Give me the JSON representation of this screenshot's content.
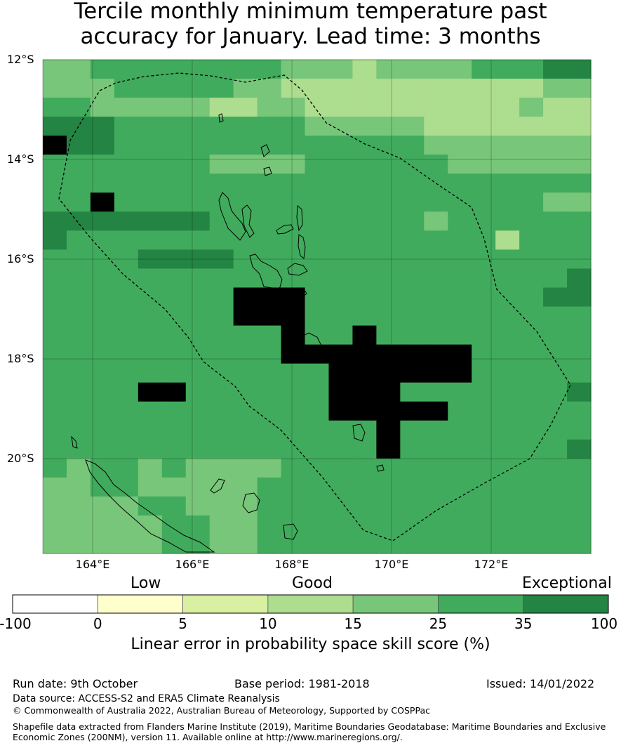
{
  "title_line1": "Tercile monthly minimum temperature past",
  "title_line2": "accuracy for January. Lead time: 3 months",
  "lat_labels": [
    "12°S",
    "14°S",
    "16°S",
    "18°S",
    "20°S"
  ],
  "lon_labels": [
    "164°E",
    "166°E",
    "168°E",
    "170°E",
    "172°E"
  ],
  "categories": [
    "Low",
    "Good",
    "Exceptional"
  ],
  "colorbar": {
    "ticks": [
      "-100",
      "0",
      "5",
      "10",
      "15",
      "25",
      "35",
      "100"
    ],
    "colors": [
      "#ffffff",
      "#ffffcc",
      "#d9f0a3",
      "#addd8e",
      "#78c679",
      "#41ab5d",
      "#238443"
    ],
    "label": "Linear error in probability space skill score (%)"
  },
  "map_data": {
    "lon_range": [
      163.0,
      174.0
    ],
    "lat_range": [
      -21.9,
      -12.0
    ],
    "grid_lons": [
      164,
      166,
      168,
      170,
      172
    ],
    "grid_lats": [
      -12,
      -14,
      -16,
      -18,
      -20
    ],
    "grid_rows": [
      "44555555554443444455566",
      "44455555443333333333344",
      "55444443344333333333433",
      "66655555555444443333333",
      "76655555555555554444444",
      "55555554444555555444444",
      "55555555555555555555555",
      "55755555555555555555544",
      "66666665555555554555555",
      "65555555555555555553555",
      "55556666555555555555555",
      "55555555555555555555556",
      "55555555777555555555566",
      "55555555777555555555555",
      "55555555557557555555555",
      "55555555557777777755555",
      "55555555555577777755555",
      "55557755555577755555556",
      "55555555555577777555555",
      "55555555555555755555555",
      "55555555555555755555556",
      "54554544445555555555555",
      "44554444455555555555555",
      "44445544455555555555555",
      "44444554455555555555555",
      "44444554455555555555555"
    ]
  },
  "footer": {
    "run_date": "Run date: 9th October",
    "base_period": "Base period: 1981-2018",
    "issued": "Issued: 14/01/2022",
    "data_source": "Data source: ACCESS-S2 and ERA5 Climate Reanalysis",
    "copyright": "© Commonwealth of Australia 2022, Australian Bureau of Meteorology, Supported by COSPPac",
    "shapefile_line1": "Shapefile data extracted from Flanders Marine Institute (2019), Maritime Boundaries Geodatabase: Maritime Boundaries and Exclusive",
    "shapefile_line2": "Economic Zones (200NM), version 11. Available online at http://www.marineregions.org/."
  }
}
